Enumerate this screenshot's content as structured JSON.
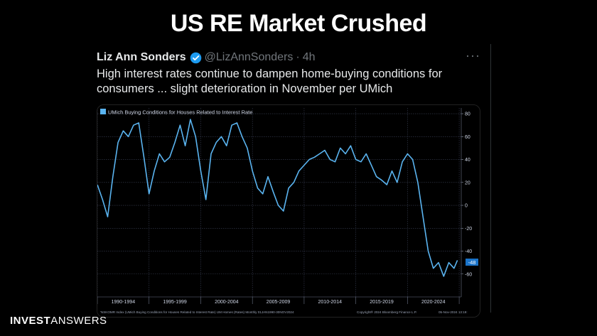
{
  "slide": {
    "title": "US RE Market Crushed",
    "brand_bold": "INVEST",
    "brand_light": "ANSWERS"
  },
  "tweet": {
    "author": "Liz Ann Sonders",
    "handle": "@LizAnnSonders",
    "separator": "·",
    "age": "4h",
    "more_label": "···",
    "text": "High interest rates continue to dampen home-buying conditions for consumers ... slight deterioration in November per UMich"
  },
  "colors": {
    "line": "#5ab4f0",
    "accent": "#1d9bf0",
    "grid": "#3a3f55"
  },
  "chart_data": {
    "type": "line",
    "title": "UMich Buying Conditions for Houses Related to Interest Rate",
    "last_value_label": "-48",
    "ylim": [
      -80,
      85
    ],
    "y_ticks": [
      80,
      60,
      40,
      20,
      0,
      -20,
      -40,
      -60
    ],
    "x_tick_labels": [
      "1990-1994",
      "1995-1999",
      "2000-2004",
      "2005-2009",
      "2010-2014",
      "2015-2019",
      "2020-2024"
    ],
    "footer_left": "'NSKOMR Index (UMich Buying Conditions for Houses Related to Interest Rate) UM Homes (Rates)  Monthly 01JAN1990-30NOV2024",
    "footer_mid": "Copyright® 2024 Bloomberg Finance L.P.",
    "footer_right": "05-Nov-2024 13:19:",
    "series": [
      {
        "name": "UMich Buying Conditions for Houses Related to Interest Rate",
        "x": [
          1990.0,
          1990.5,
          1991.0,
          1991.5,
          1992.0,
          1992.5,
          1993.0,
          1993.5,
          1994.0,
          1994.5,
          1995.0,
          1995.5,
          1996.0,
          1996.5,
          1997.0,
          1997.5,
          1998.0,
          1998.5,
          1999.0,
          1999.5,
          2000.0,
          2000.5,
          2001.0,
          2001.5,
          2002.0,
          2002.5,
          2003.0,
          2003.5,
          2004.0,
          2004.5,
          2005.0,
          2005.5,
          2006.0,
          2006.5,
          2007.0,
          2007.5,
          2008.0,
          2008.5,
          2009.0,
          2009.5,
          2010.0,
          2010.5,
          2011.0,
          2011.5,
          2012.0,
          2012.5,
          2013.0,
          2013.5,
          2014.0,
          2014.5,
          2015.0,
          2015.5,
          2016.0,
          2016.5,
          2017.0,
          2017.5,
          2018.0,
          2018.5,
          2019.0,
          2019.5,
          2020.0,
          2020.5,
          2021.0,
          2021.5,
          2022.0,
          2022.5,
          2023.0,
          2023.5,
          2024.0,
          2024.5,
          2024.83
        ],
        "values": [
          18,
          5,
          -10,
          25,
          55,
          65,
          60,
          70,
          72,
          42,
          10,
          30,
          45,
          38,
          42,
          55,
          70,
          52,
          75,
          60,
          30,
          5,
          45,
          55,
          60,
          52,
          70,
          72,
          60,
          50,
          30,
          15,
          10,
          25,
          12,
          0,
          -5,
          15,
          20,
          30,
          35,
          40,
          42,
          45,
          48,
          40,
          38,
          50,
          45,
          52,
          40,
          38,
          45,
          35,
          25,
          22,
          18,
          30,
          20,
          38,
          45,
          40,
          20,
          -10,
          -40,
          -55,
          -50,
          -62,
          -50,
          -55,
          -48
        ]
      }
    ]
  }
}
